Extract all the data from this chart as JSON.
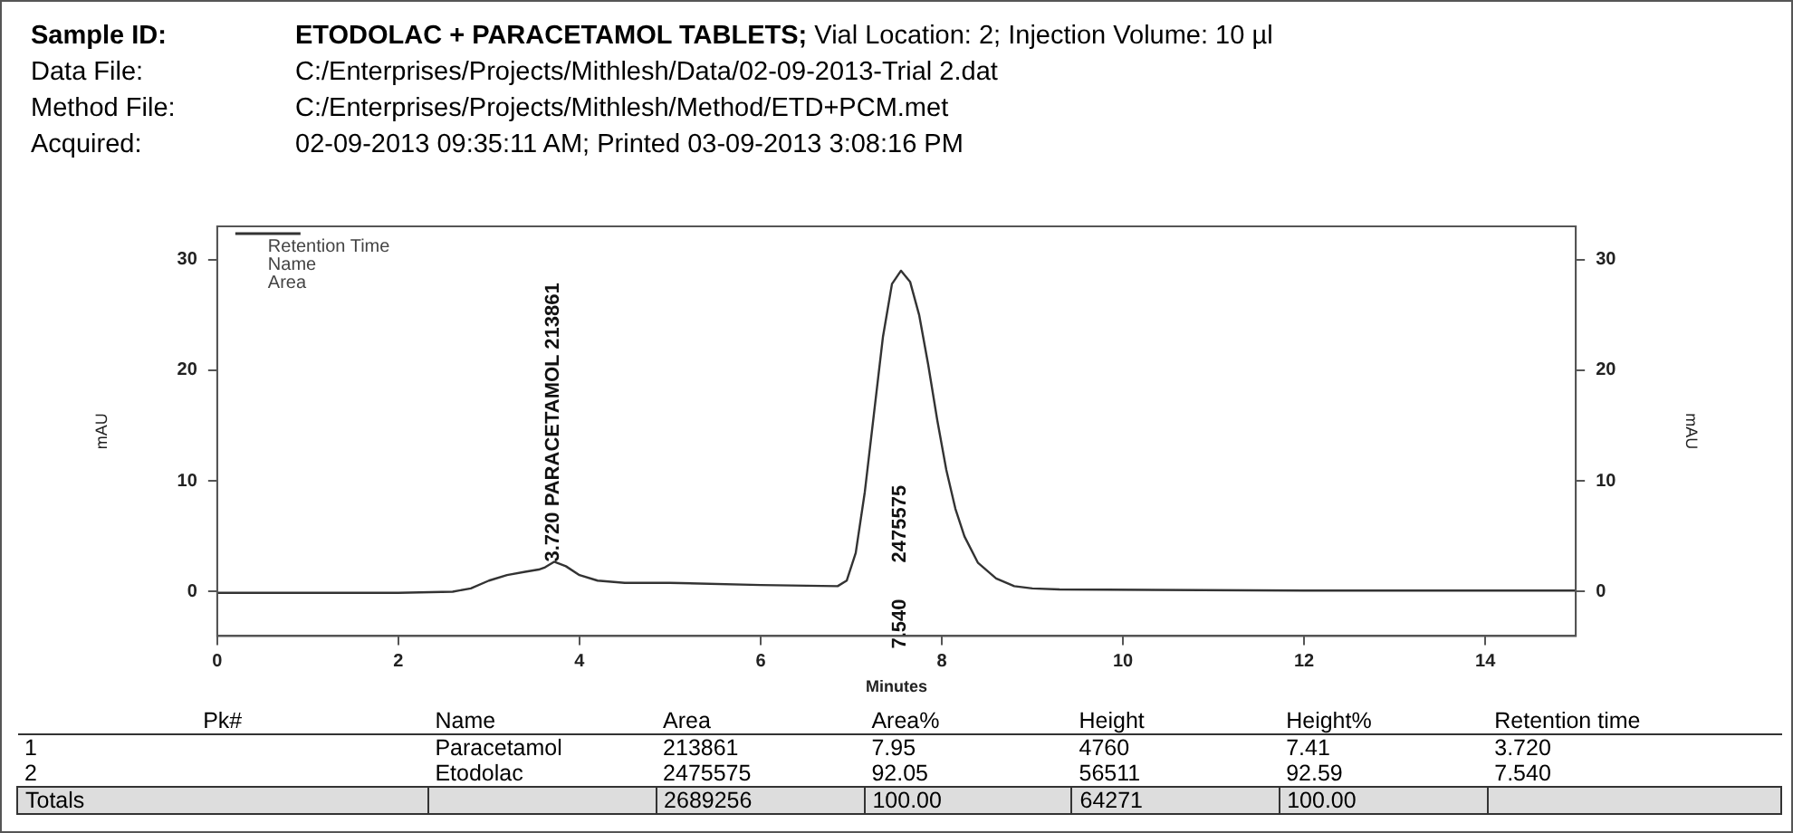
{
  "chart_data": {
    "type": "line",
    "title": "ETODOLAC + PARACETAMOL TABLETS;",
    "xlabel": "Minutes",
    "ylabel": "mAU",
    "y2label": "mAU",
    "x": [
      0,
      1,
      2,
      2.6,
      2.8,
      3.0,
      3.2,
      3.4,
      3.55,
      3.62,
      3.72,
      3.85,
      4.0,
      4.2,
      4.5,
      4.65,
      5,
      6,
      6.85,
      6.95,
      7.05,
      7.15,
      7.25,
      7.35,
      7.45,
      7.55,
      7.65,
      7.75,
      7.85,
      7.95,
      8.05,
      8.15,
      8.25,
      8.4,
      8.6,
      8.8,
      9.0,
      9.3,
      12,
      15
    ],
    "series": [
      {
        "name": "Retention Time\nName\nArea",
        "color": "#333333",
        "values": [
          -0.1,
          -0.1,
          -0.1,
          0,
          0.3,
          1.0,
          1.5,
          1.8,
          2.0,
          2.2,
          2.7,
          2.3,
          1.5,
          1.0,
          0.8,
          0.8,
          0.8,
          0.6,
          0.5,
          1.0,
          3.5,
          9,
          16,
          23,
          27.8,
          29,
          28,
          25,
          20.5,
          15.5,
          11,
          7.5,
          5,
          2.6,
          1.2,
          0.5,
          0.3,
          0.2,
          0.1,
          0.1
        ]
      }
    ],
    "xlim": [
      0,
      15
    ],
    "xticks": [
      0,
      2,
      4,
      6,
      8,
      10,
      12,
      14
    ],
    "ylim": [
      -4,
      33
    ],
    "yticks": [
      0,
      10,
      20,
      30
    ],
    "y2lim": [
      -4,
      33
    ],
    "y2ticks": [
      0,
      10,
      20,
      30
    ],
    "grid": false,
    "legend": "top left",
    "marker": "none",
    "line_style": "solid",
    "annotations": [
      "Sample ID:",
      "Vial Location: 2; Injection Volume: 10 µl",
      "Data File:",
      "C:/Enterprises/Projects/Mithlesh/Data/02-09-2013-Trial 2.dat",
      "Method File:",
      "C:/Enterprises/Projects/Mithlesh/Method/ETD+PCM.met",
      "Acquired:",
      "02-09-2013 09:35:11 AM; Printed 03-09-2013 3:08:16 PM",
      "Pk#",
      "Name",
      "Area",
      "Area%",
      "Height",
      "Height%",
      "Retention time",
      "1",
      "Paracetamol",
      "213861",
      "7.95",
      "4760",
      "7.41",
      "3.720",
      "2",
      "Etodolac",
      "2475575",
      "92.05",
      "56511",
      "92.59",
      "7.540",
      "Totals",
      "2689256",
      "100.00",
      "64271",
      "100.00",
      "7.540",
      "2475575",
      {
        "text": "3.720 PARACETAMOL 213861",
        "x": 3.72,
        "y": 2.7
      }
    ]
  }
}
